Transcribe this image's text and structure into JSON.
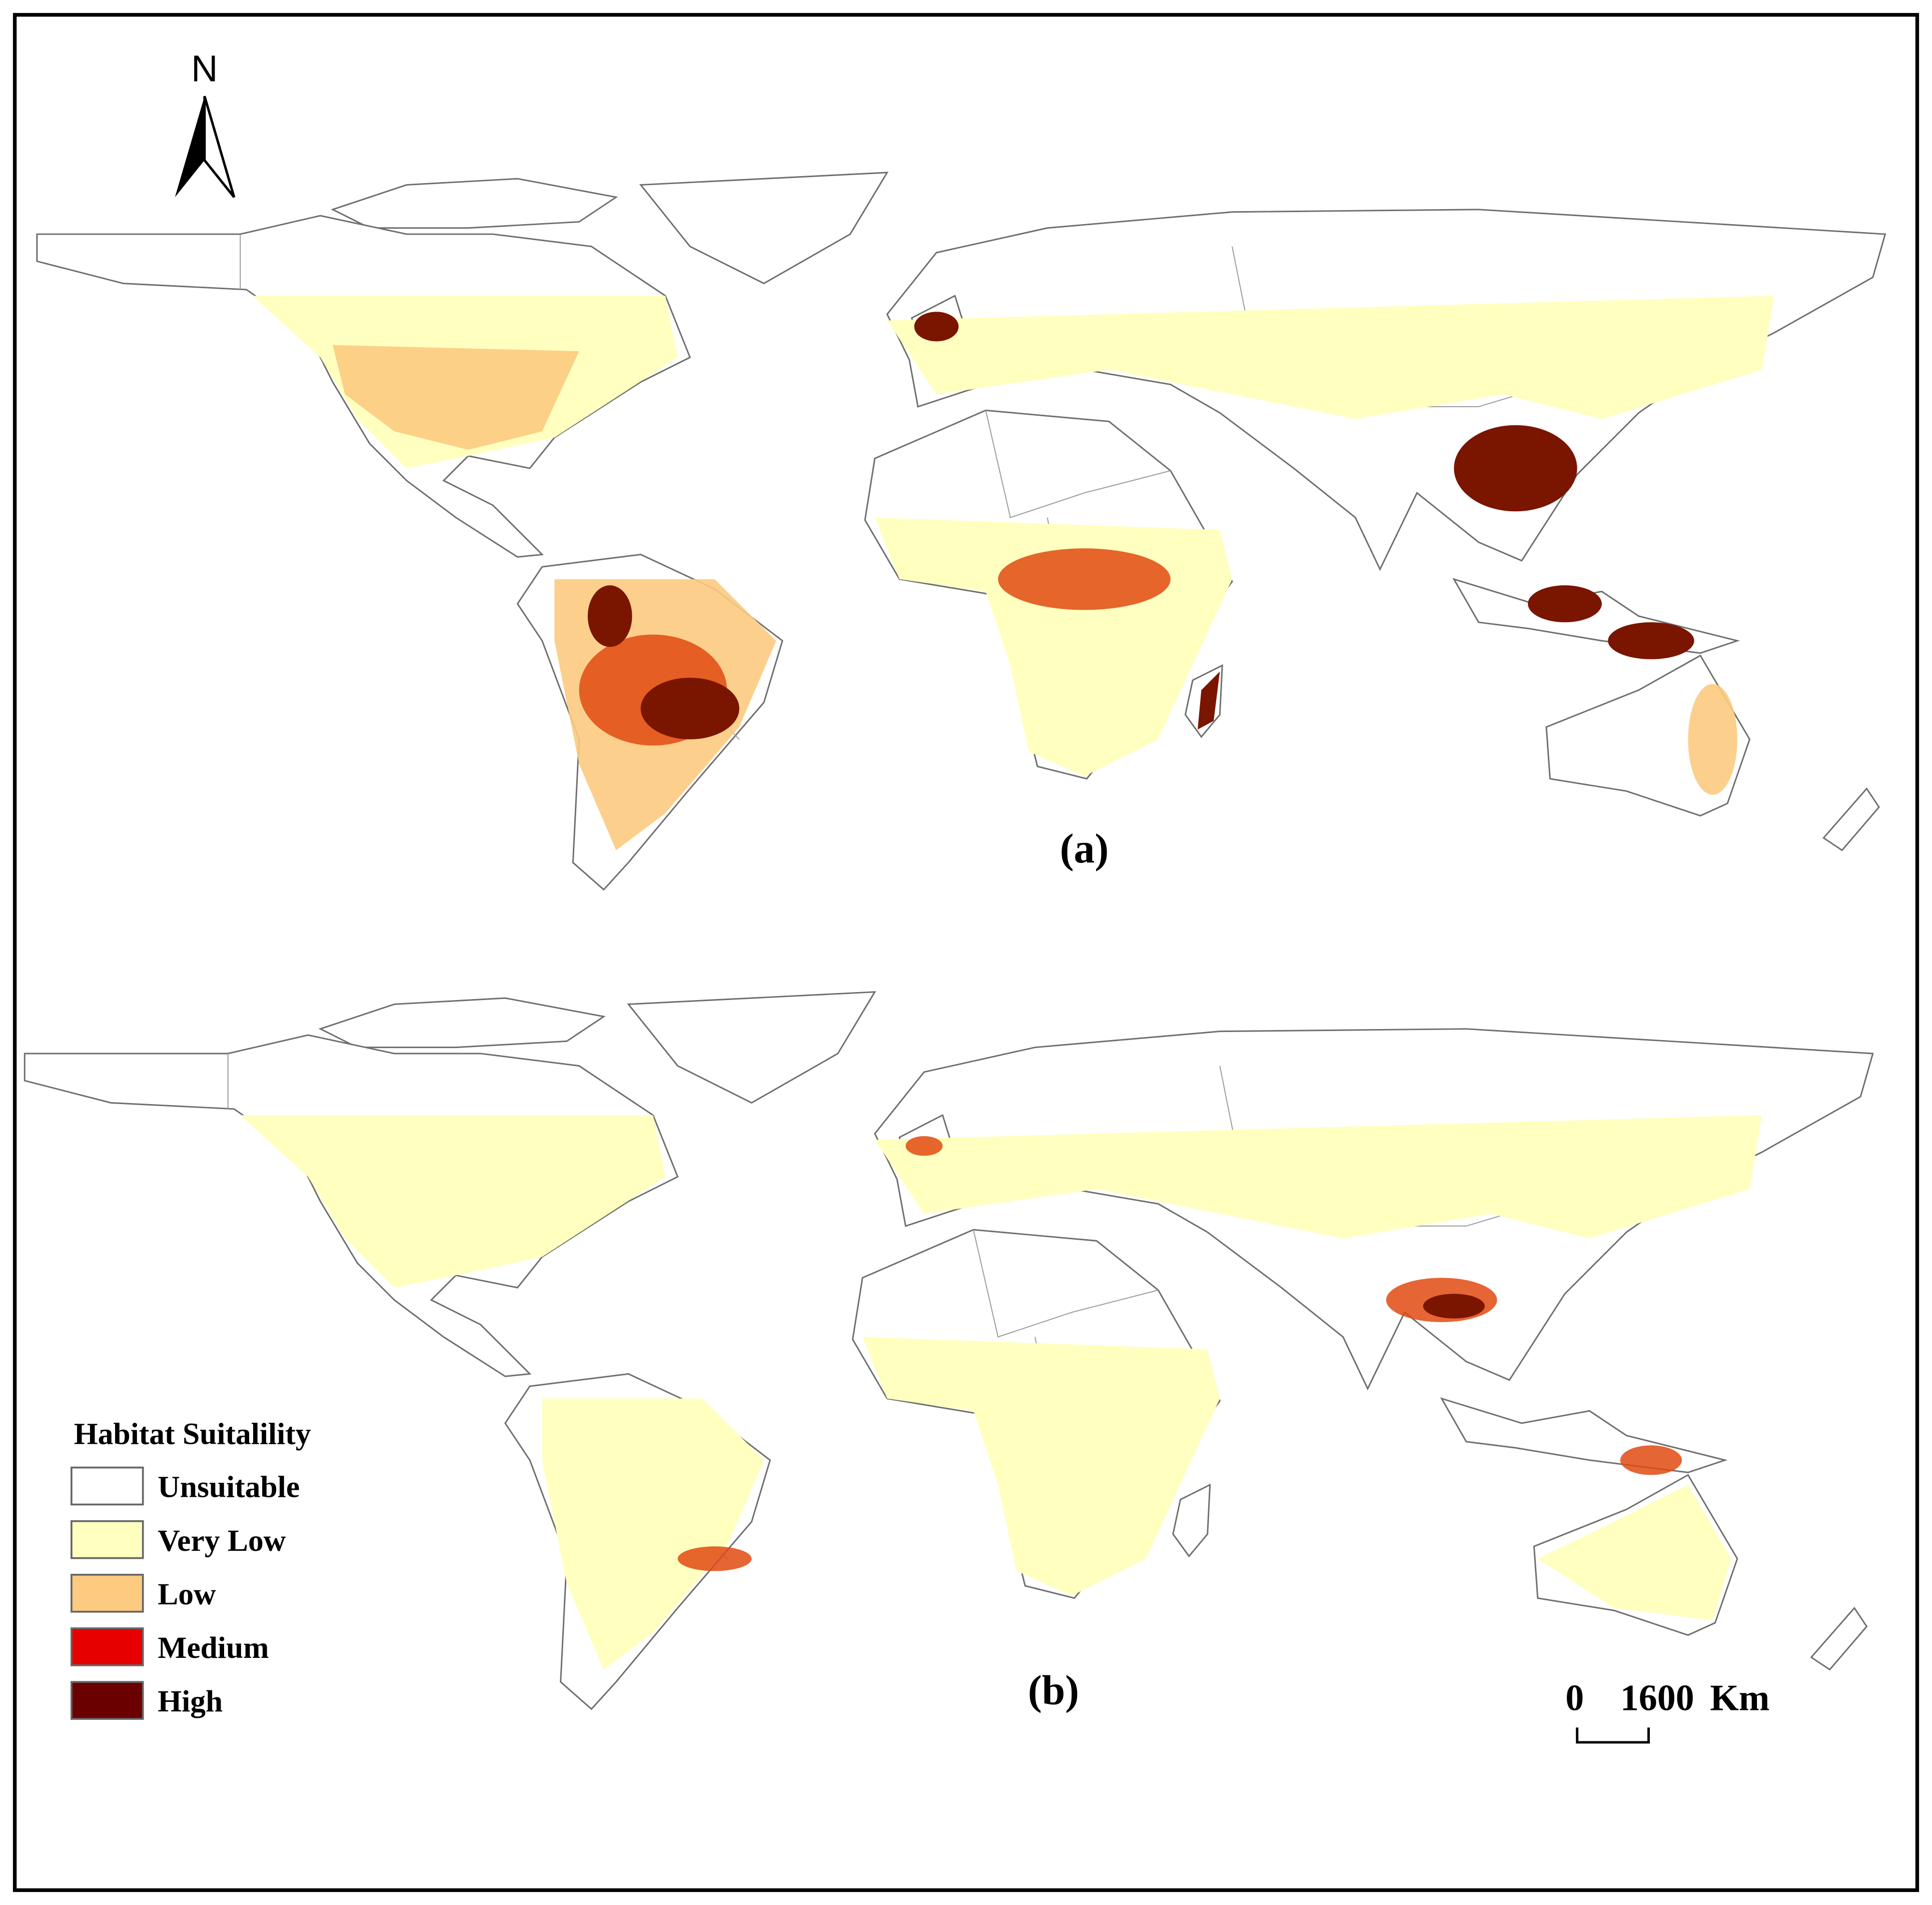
{
  "north_arrow": {
    "label": "N"
  },
  "panels": [
    {
      "label": "(a)"
    },
    {
      "label": "(b)"
    }
  ],
  "legend": {
    "title": "Habitat Suitalility",
    "items": [
      {
        "label": "Unsuitable",
        "color": "#ffffff"
      },
      {
        "label": "Very Low",
        "color": "#ffffc0"
      },
      {
        "label": "Low",
        "color": "#fccb80"
      },
      {
        "label": "Medium",
        "color": "#e60000"
      },
      {
        "label": "High",
        "color": "#6b0000"
      }
    ]
  },
  "scale_bar": {
    "start": 0,
    "end": 1600,
    "unit": "Km"
  }
}
